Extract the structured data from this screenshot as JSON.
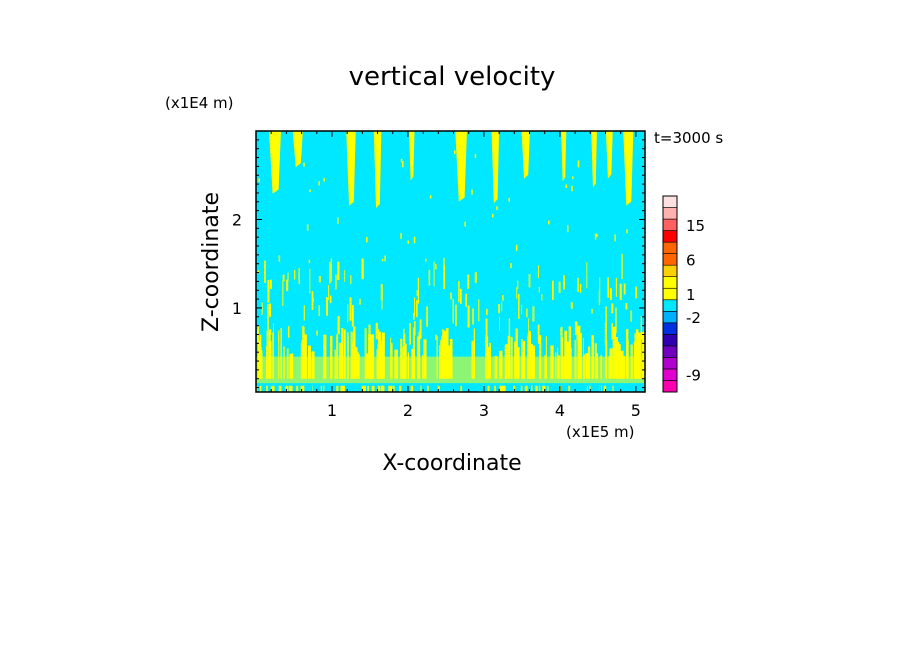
{
  "chart_data": {
    "type": "heatmap",
    "title": "vertical velocity",
    "time_label": "t=3000 s",
    "xlabel": "X-coordinate",
    "ylabel": "Z-coordinate",
    "x_scale_label": "(x1E5 m)",
    "y_scale_label": "(x1E4 m)",
    "xlim": [
      0,
      5.12
    ],
    "ylim": [
      0.05,
      3.0
    ],
    "xticks": [
      {
        "value": 1,
        "label": "1"
      },
      {
        "value": 2,
        "label": "2"
      },
      {
        "value": 3,
        "label": "3"
      },
      {
        "value": 4,
        "label": "4"
      },
      {
        "value": 5,
        "label": "5"
      }
    ],
    "yticks": [
      {
        "value": 1,
        "label": "1"
      },
      {
        "value": 2,
        "label": "2"
      }
    ],
    "field": {
      "background_level_color": "#00e8ff",
      "updraft_color": "#ffff00",
      "dominant_level": "between -2 and 1",
      "description_upper_plumes_x": [
        0.25,
        0.55,
        1.25,
        1.6,
        2.05,
        2.7,
        3.15,
        3.55,
        4.05,
        4.45,
        4.65,
        4.9
      ],
      "low_level_band_z": [
        0.15,
        0.45
      ]
    },
    "colorbar": {
      "levels": [
        {
          "color": "#ff00b0"
        },
        {
          "color": "#e000d0"
        },
        {
          "color": "#b000d0"
        },
        {
          "color": "#7000c0"
        },
        {
          "color": "#3000b0"
        },
        {
          "color": "#0030e0"
        },
        {
          "color": "#00b0ff"
        },
        {
          "color": "#00e8ff"
        },
        {
          "color": "#ffff00"
        },
        {
          "color": "#ffff00"
        },
        {
          "color": "#ffd000"
        },
        {
          "color": "#ff6600"
        },
        {
          "color": "#ff6600"
        },
        {
          "color": "#ff0000"
        },
        {
          "color": "#ff6060"
        },
        {
          "color": "#ffb0b0"
        },
        {
          "color": "#ffe0e0"
        }
      ],
      "labels": [
        {
          "text": "15",
          "index": 14
        },
        {
          "text": "6",
          "index": 11
        },
        {
          "text": "1",
          "index": 8
        },
        {
          "text": "-2",
          "index": 6
        },
        {
          "text": "-9",
          "index": 1
        }
      ]
    }
  }
}
